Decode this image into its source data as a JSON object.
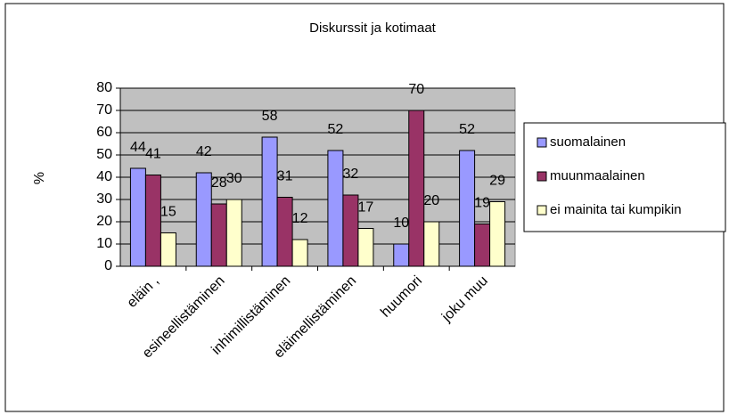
{
  "chart_data": {
    "type": "bar",
    "title": "Diskurssit ja kotimaat",
    "y_label": "%",
    "categories": [
      "eläin ,",
      "esineellistäminen",
      "inhimillistäminen",
      "eläimellistäminen",
      "huumori",
      "joku muu"
    ],
    "series": [
      {
        "name": "suomalainen",
        "color": "#9999ff",
        "values": [
          44,
          42,
          58,
          52,
          10,
          52
        ]
      },
      {
        "name": "muunmaalainen",
        "color": "#993366",
        "values": [
          41,
          28,
          31,
          32,
          70,
          19
        ]
      },
      {
        "name": "ei mainita tai kumpikin",
        "color": "#ffffcc",
        "values": [
          15,
          30,
          12,
          17,
          20,
          29
        ]
      }
    ],
    "ylim": [
      0,
      80
    ],
    "yticks": [
      0,
      10,
      20,
      30,
      40,
      50,
      60,
      70,
      80
    ],
    "grid": true,
    "legend": "right"
  }
}
